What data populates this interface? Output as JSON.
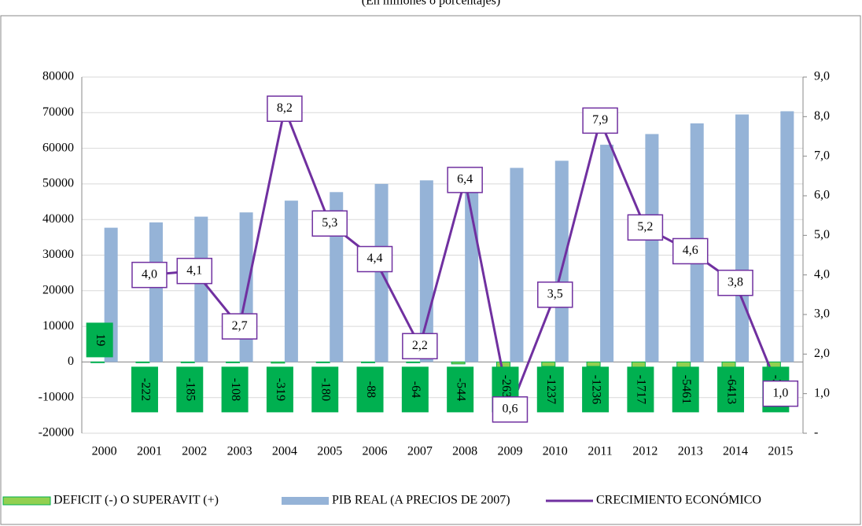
{
  "chart_data": {
    "type": "bar-line",
    "title": "(En millones o porcentajes)",
    "categories": [
      "2000",
      "2001",
      "2002",
      "2003",
      "2004",
      "2005",
      "2006",
      "2007",
      "2008",
      "2009",
      "2010",
      "2011",
      "2012",
      "2013",
      "2014",
      "2015"
    ],
    "series": [
      {
        "name": "DEFICIT (-) O SUPERAVIT (+)",
        "type": "bar",
        "color": "#92d050",
        "label_color": "#00b050",
        "values": [
          19,
          -222,
          -185,
          -108,
          -319,
          -180,
          -88,
          -64,
          -544,
          -2635,
          -1237,
          -1236,
          -1717,
          -5461,
          -6413,
          -3805
        ]
      },
      {
        "name": "PIB REAL (A PRECIOS DE 2007)",
        "type": "bar",
        "color": "#95b3d7",
        "values": [
          37700,
          39200,
          40800,
          42000,
          45300,
          47700,
          50000,
          51000,
          49000,
          54500,
          56500,
          61000,
          64000,
          67000,
          69500,
          70400
        ]
      },
      {
        "name": "CRECIMIENTO ECONÓMICO",
        "type": "line",
        "axis": "y2",
        "color": "#7030a0",
        "values": [
          null,
          4.0,
          4.1,
          2.7,
          8.2,
          5.3,
          4.4,
          2.2,
          6.4,
          0.6,
          3.5,
          7.9,
          5.2,
          4.6,
          3.8,
          1.0
        ],
        "value_labels": [
          null,
          "4,0",
          "4,1",
          "2,7",
          "8,2",
          "5,3",
          "4,4",
          "2,2",
          "6,4",
          "0,6",
          "3,5",
          "7,9",
          "5,2",
          "4,6",
          "3,8",
          "1,0"
        ]
      }
    ],
    "ylim": [
      -20000,
      80000
    ],
    "yticks": [
      -20000,
      -10000,
      0,
      10000,
      20000,
      30000,
      40000,
      50000,
      60000,
      70000,
      80000
    ],
    "y2lim": [
      0,
      9
    ],
    "y2ticks": [
      {
        "value": 0,
        "label": "-"
      },
      {
        "value": 1,
        "label": "1,0"
      },
      {
        "value": 2,
        "label": "2,0"
      },
      {
        "value": 3,
        "label": "3,0"
      },
      {
        "value": 4,
        "label": "4,0"
      },
      {
        "value": 5,
        "label": "5,0"
      },
      {
        "value": 6,
        "label": "6,0"
      },
      {
        "value": 7,
        "label": "7,0"
      },
      {
        "value": 8,
        "label": "8,0"
      },
      {
        "value": 9,
        "label": "9,0"
      }
    ],
    "grid": true
  }
}
